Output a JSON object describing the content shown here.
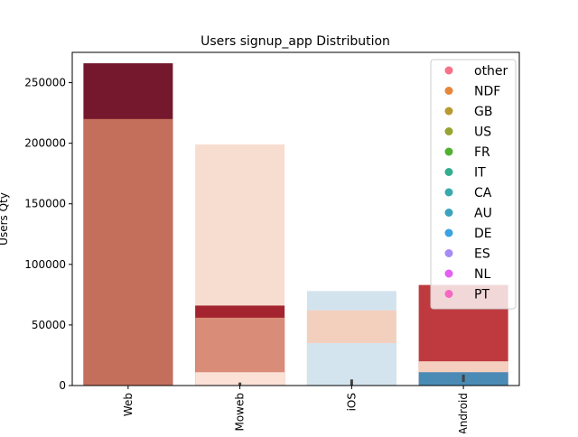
{
  "chart_data": {
    "type": "bar",
    "stacking": "overlaid",
    "title": "Users signup_app Distribution",
    "xlabel": "",
    "ylabel": "Users Qty",
    "ylim": [
      0,
      275000
    ],
    "yticks": [
      0,
      50000,
      100000,
      150000,
      200000,
      250000
    ],
    "categories": [
      "Web",
      "Moweb",
      "iOS",
      "Android"
    ],
    "grid": false,
    "legend_position": "top-right",
    "legend": [
      {
        "label": "other",
        "color": "#f77189"
      },
      {
        "label": "NDF",
        "color": "#e7853b"
      },
      {
        "label": "GB",
        "color": "#b89a32"
      },
      {
        "label": "US",
        "color": "#97a431"
      },
      {
        "label": "FR",
        "color": "#50b131"
      },
      {
        "label": "IT",
        "color": "#34ae8d"
      },
      {
        "label": "CA",
        "color": "#38aaac"
      },
      {
        "label": "AU",
        "color": "#3ba3be"
      },
      {
        "label": "DE",
        "color": "#3ba2e4"
      },
      {
        "label": "ES",
        "color": "#a48cf4"
      },
      {
        "label": "NL",
        "color": "#e460f1"
      },
      {
        "label": "PT",
        "color": "#f668c2"
      }
    ],
    "layers": [
      {
        "category": "Web",
        "value": 266000,
        "color": "#75182d"
      },
      {
        "category": "Web",
        "value": 220000,
        "color": "#c46f5c"
      },
      {
        "category": "Moweb",
        "value": 199000,
        "color": "#f7ddd0"
      },
      {
        "category": "Moweb",
        "value": 66000,
        "color": "#a3242f"
      },
      {
        "category": "Moweb",
        "value": 56000,
        "color": "#d98d78"
      },
      {
        "category": "Moweb",
        "value": 11000,
        "color": "#fbe1d6"
      },
      {
        "category": "iOS",
        "value": 78000,
        "color": "#d3e3ee"
      },
      {
        "category": "iOS",
        "value": 62000,
        "color": "#f3d0be"
      },
      {
        "category": "iOS",
        "value": 35000,
        "color": "#d4e4ee"
      },
      {
        "category": "Android",
        "value": 83000,
        "color": "#bf3a3f"
      },
      {
        "category": "Android",
        "value": 20000,
        "color": "#f4cfbf"
      },
      {
        "category": "Android",
        "value": 11000,
        "color": "#4a8bb5"
      }
    ],
    "error_bars": [
      {
        "category": "Moweb",
        "low": 0,
        "high": 2500
      },
      {
        "category": "iOS",
        "low": 0,
        "high": 5000
      },
      {
        "category": "Android",
        "low": 3000,
        "high": 9000
      }
    ]
  }
}
